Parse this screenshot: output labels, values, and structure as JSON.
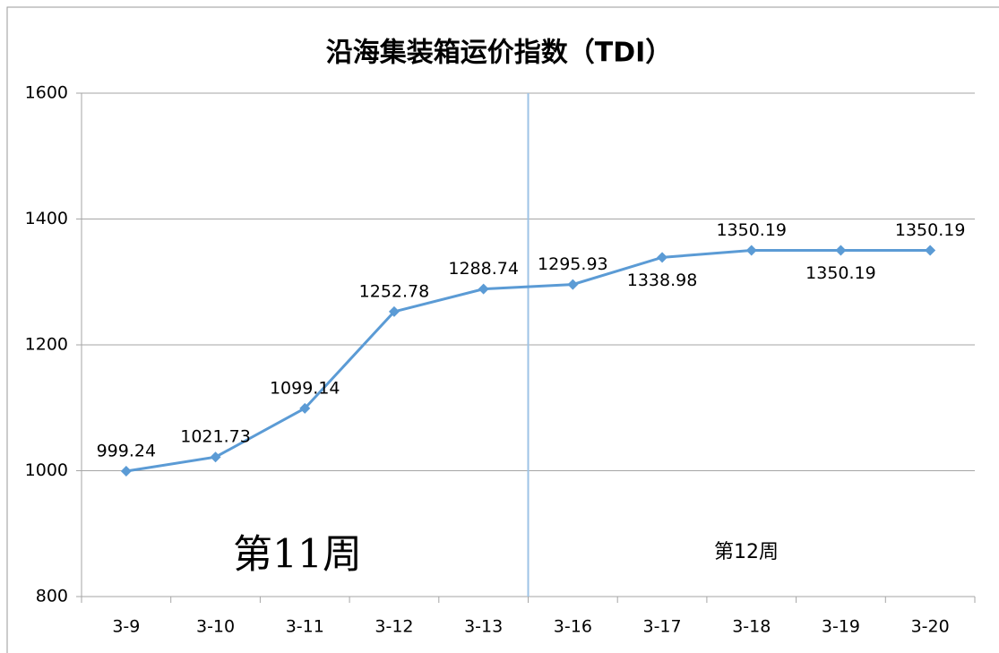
{
  "chart_data": {
    "type": "line",
    "title": "沿海集装箱运价指数（TDI）",
    "categories": [
      "3-9",
      "3-10",
      "3-11",
      "3-12",
      "3-13",
      "3-16",
      "3-17",
      "3-18",
      "3-19",
      "3-20"
    ],
    "series": [
      {
        "color": "#5b9bd5",
        "values": [
          999.24,
          1021.73,
          1099.14,
          1252.78,
          1288.74,
          1295.93,
          1338.98,
          1350.19,
          1350.19,
          1350.19
        ]
      }
    ],
    "ylim": [
      800,
      1600
    ],
    "yticks": [
      800,
      1000,
      1200,
      1400,
      1600
    ],
    "grid": true,
    "annotations": [
      "第11周",
      "第12周"
    ]
  }
}
